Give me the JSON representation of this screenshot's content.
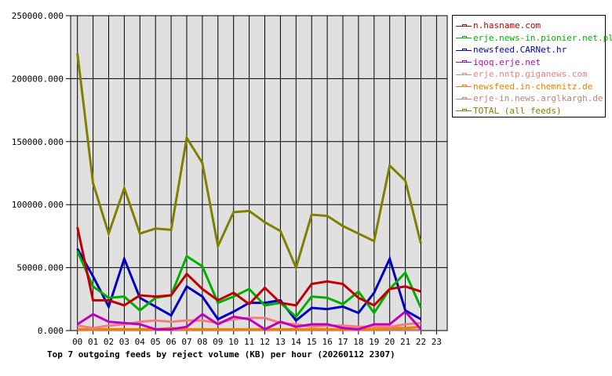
{
  "chart_data": {
    "type": "line",
    "title": "Top 7 outgoing feeds by reject volume (KB) per hour (20260112 2307)",
    "xlabel": "",
    "ylabel": "",
    "ylim": [
      0,
      250000
    ],
    "yticks": [
      "0.000",
      "50000.000",
      "100000.000",
      "150000.000",
      "200000.000",
      "250000.000"
    ],
    "x": [
      "00",
      "01",
      "02",
      "03",
      "04",
      "05",
      "06",
      "07",
      "08",
      "09",
      "10",
      "11",
      "12",
      "13",
      "14",
      "15",
      "16",
      "17",
      "18",
      "19",
      "20",
      "21",
      "22",
      "23"
    ],
    "grid": true,
    "legend_position": "right",
    "series": [
      {
        "name": "n.hasname.com",
        "color": "#c00000",
        "values": [
          82000,
          24000,
          24000,
          20000,
          28000,
          27000,
          28000,
          45000,
          33000,
          24000,
          30000,
          21000,
          34000,
          22000,
          20000,
          37000,
          39000,
          37000,
          26000,
          20000,
          33000,
          35000,
          31000
        ]
      },
      {
        "name": "erje.news-in.pionier.net.pl",
        "color": "#00b000",
        "values": [
          63000,
          35000,
          26000,
          27000,
          16000,
          26000,
          28000,
          59000,
          51000,
          22000,
          27000,
          33000,
          20000,
          22000,
          11000,
          27000,
          26000,
          21000,
          31000,
          14000,
          33000,
          46000,
          18000
        ]
      },
      {
        "name": "newsfeed.CARNet.hr",
        "color": "#0000c0",
        "values": [
          65000,
          43000,
          19000,
          57000,
          26000,
          19000,
          12000,
          35000,
          27000,
          9000,
          15000,
          22000,
          22000,
          24000,
          8000,
          18000,
          17000,
          19000,
          14000,
          30000,
          57000,
          16000,
          9000
        ]
      },
      {
        "name": "iqoq.erje.net",
        "color": "#c000c0",
        "values": [
          5000,
          13000,
          7000,
          6000,
          5000,
          1000,
          1000,
          3000,
          13000,
          5000,
          11000,
          9000,
          1000,
          7000,
          3000,
          5000,
          5000,
          2000,
          1000,
          5000,
          5000,
          15000,
          1000
        ]
      },
      {
        "name": "erje.nntp.giganews.com",
        "color": "#f08080",
        "values": [
          4000,
          2000,
          4000,
          5000,
          7000,
          8000,
          7000,
          8000,
          8000,
          6000,
          9000,
          10000,
          10000,
          6000,
          5000,
          3000,
          4000,
          4000,
          3000,
          3000,
          3000,
          5000,
          6000
        ]
      },
      {
        "name": "newsfeed.in-chemnitz.de",
        "color": "#f08000",
        "values": [
          1000,
          1000,
          1000,
          1000,
          1000,
          1000,
          2000,
          1000,
          1000,
          1000,
          1000,
          1000,
          1000,
          1000,
          1000,
          1000,
          1000,
          1000,
          1000,
          1000,
          2000,
          2000,
          3000
        ]
      },
      {
        "name": "erje-in.news.arglkargh.de",
        "color": "#c08080",
        "values": [
          500,
          500,
          500,
          500,
          500,
          500,
          500,
          500,
          500,
          500,
          500,
          500,
          500,
          500,
          500,
          500,
          500,
          500,
          500,
          500,
          500,
          500,
          500
        ]
      },
      {
        "name": "TOTAL (all feeds)",
        "color": "#808000",
        "values": [
          220000,
          117000,
          77000,
          113000,
          77000,
          81000,
          80000,
          153000,
          133000,
          67000,
          94000,
          95000,
          86000,
          79000,
          50000,
          92000,
          91000,
          83000,
          77000,
          71000,
          131000,
          119000,
          69000
        ]
      }
    ]
  },
  "legend": {
    "items": [
      {
        "label": "n.hasname.com",
        "color": "#c00000"
      },
      {
        "label": "erje.news-in.pionier.net.pl",
        "color": "#00b000"
      },
      {
        "label": "newsfeed.CARNet.hr",
        "color": "#0000c0"
      },
      {
        "label": "iqoq.erje.net",
        "color": "#c000c0"
      },
      {
        "label": "erje.nntp.giganews.com",
        "color": "#f08080"
      },
      {
        "label": "newsfeed.in-chemnitz.de",
        "color": "#f08000"
      },
      {
        "label": "erje-in.news.arglkargh.de",
        "color": "#c08080"
      },
      {
        "label": "TOTAL (all feeds)",
        "color": "#808000"
      }
    ]
  }
}
